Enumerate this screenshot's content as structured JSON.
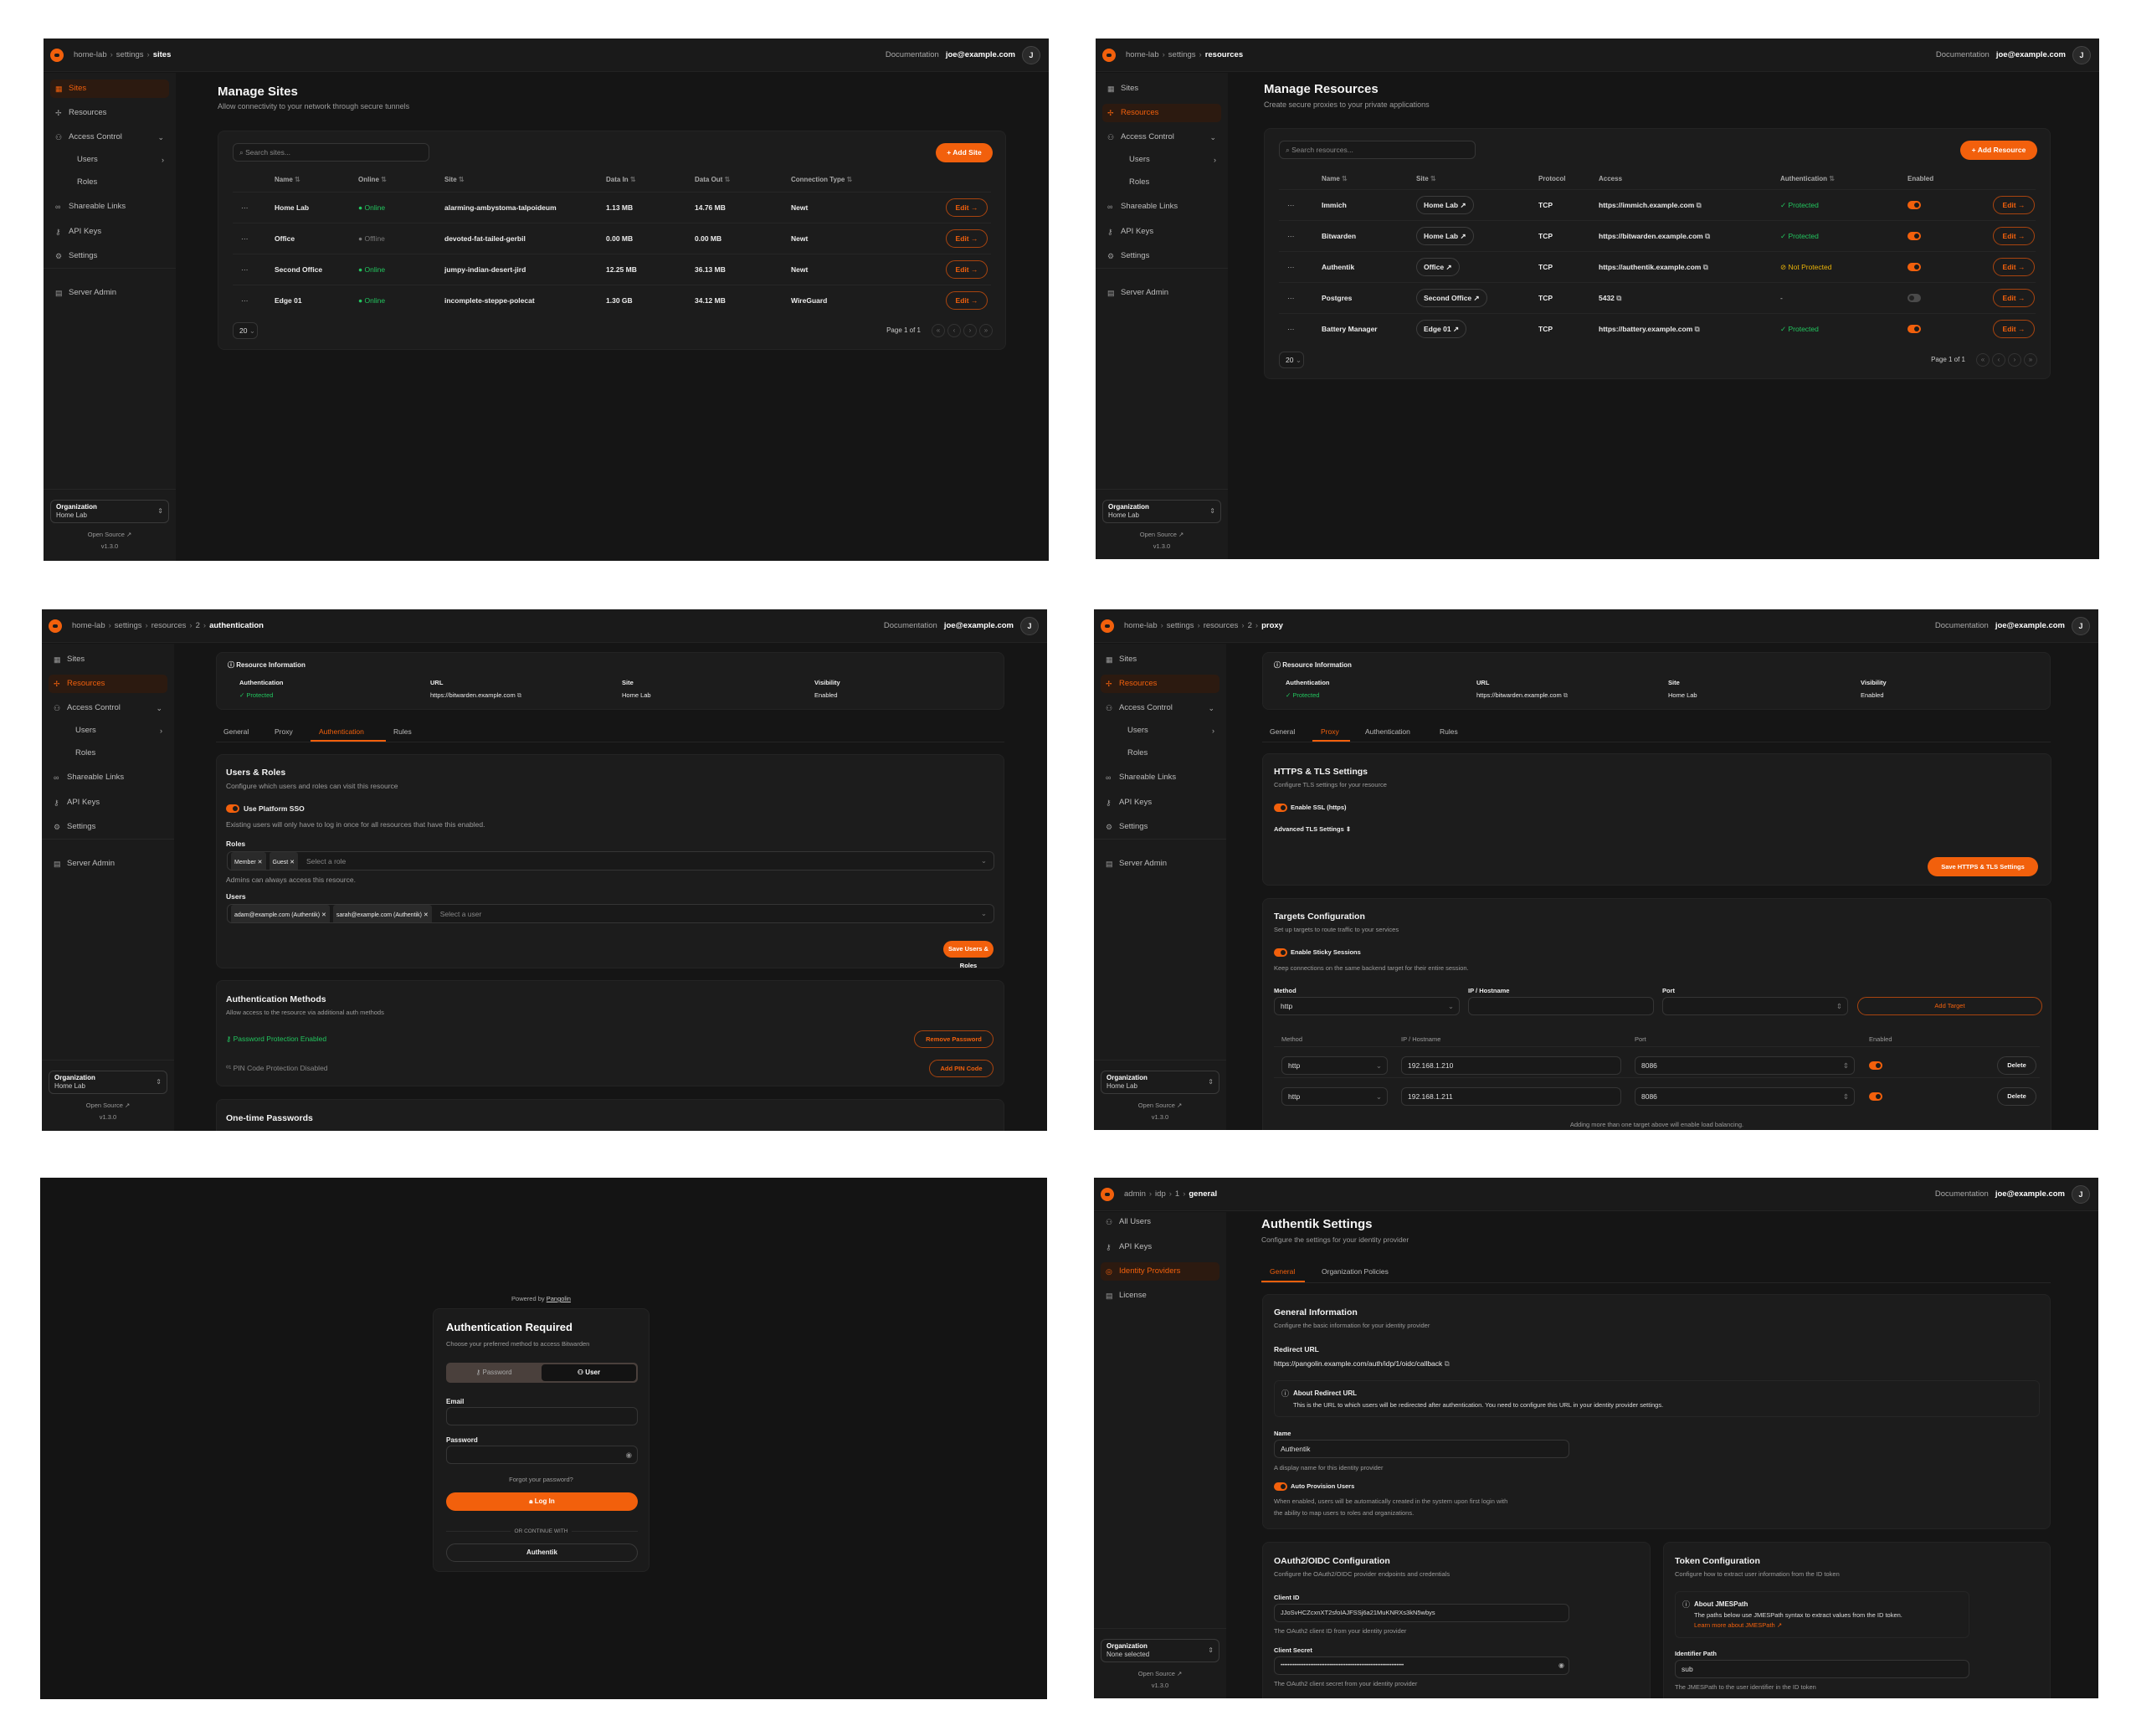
{
  "colors": {
    "accent": "#f2600c",
    "success": "#22c55e",
    "warning": "#eab308",
    "panel_background": "#151515",
    "page_background": "#ffffff"
  },
  "common": {
    "documentation": "Documentation",
    "user_email": "joe@example.com",
    "avatar_initial": "J",
    "org_label": "Organization",
    "open_source": "Open Source",
    "version": "v1.3.0",
    "edit_label": "Edit",
    "page_size": "20",
    "page_info": "Page 1 of 1"
  },
  "org_nav": [
    {
      "label": "Sites",
      "icon": "sites-icon"
    },
    {
      "label": "Resources",
      "icon": "resources-icon"
    },
    {
      "label": "Access Control",
      "icon": "users-icon",
      "chevron": "chevron-down-icon"
    },
    {
      "label": "Users",
      "sub": true,
      "chevron": "chevron-right-icon"
    },
    {
      "label": "Roles",
      "sub": true
    },
    {
      "label": "Shareable Links",
      "icon": "link-icon"
    },
    {
      "label": "API Keys",
      "icon": "key-icon"
    },
    {
      "label": "Settings",
      "icon": "gear-icon"
    },
    {
      "label": "Server Admin",
      "icon": "server-icon"
    }
  ],
  "admin_nav": [
    {
      "label": "All Users",
      "icon": "users-icon"
    },
    {
      "label": "API Keys",
      "icon": "key-icon"
    },
    {
      "label": "Identity Providers",
      "icon": "fingerprint-icon"
    },
    {
      "label": "License",
      "icon": "license-icon"
    }
  ],
  "sites": {
    "breadcrumb": [
      "home-lab",
      "settings",
      "sites"
    ],
    "active_nav": "Sites",
    "org_value": "Home Lab",
    "title": "Manage Sites",
    "subtitle": "Allow connectivity to your network through secure tunnels",
    "search_placeholder": "Search sites...",
    "add_button": "Add Site",
    "columns": [
      "Name",
      "Online",
      "Site",
      "Data In",
      "Data Out",
      "Connection Type"
    ],
    "rows": [
      {
        "name": "Home Lab",
        "status": "Online",
        "site": "alarming-ambystoma-talpoideum",
        "data_in": "1.13 MB",
        "data_out": "14.76 MB",
        "type": "Newt"
      },
      {
        "name": "Office",
        "status": "Offline",
        "site": "devoted-fat-tailed-gerbil",
        "data_in": "0.00 MB",
        "data_out": "0.00 MB",
        "type": "Newt"
      },
      {
        "name": "Second Office",
        "status": "Online",
        "site": "jumpy-indian-desert-jird",
        "data_in": "12.25 MB",
        "data_out": "36.13 MB",
        "type": "Newt"
      },
      {
        "name": "Edge 01",
        "status": "Online",
        "site": "incomplete-steppe-polecat",
        "data_in": "1.30 GB",
        "data_out": "34.12 MB",
        "type": "WireGuard"
      }
    ]
  },
  "resources": {
    "breadcrumb": [
      "home-lab",
      "settings",
      "resources"
    ],
    "active_nav": "Resources",
    "org_value": "Home Lab",
    "title": "Manage Resources",
    "subtitle": "Create secure proxies to your private applications",
    "search_placeholder": "Search resources...",
    "add_button": "Add Resource",
    "columns": [
      "Name",
      "Site",
      "Protocol",
      "Access",
      "Authentication",
      "Enabled"
    ],
    "rows": [
      {
        "name": "Immich",
        "site": "Home Lab",
        "protocol": "TCP",
        "access": "https://immich.example.com",
        "auth": "Protected",
        "auth_state": "protected",
        "enabled": true
      },
      {
        "name": "Bitwarden",
        "site": "Home Lab",
        "protocol": "TCP",
        "access": "https://bitwarden.example.com",
        "auth": "Protected",
        "auth_state": "protected",
        "enabled": true
      },
      {
        "name": "Authentik",
        "site": "Office",
        "protocol": "TCP",
        "access": "https://authentik.example.com",
        "auth": "Not Protected",
        "auth_state": "unprotected",
        "enabled": true
      },
      {
        "name": "Postgres",
        "site": "Second Office",
        "protocol": "TCP",
        "access": "5432",
        "auth": "-",
        "auth_state": "none",
        "enabled": false
      },
      {
        "name": "Battery Manager",
        "site": "Edge 01",
        "protocol": "TCP",
        "access": "https://battery.example.com",
        "auth": "Protected",
        "auth_state": "protected",
        "enabled": true
      }
    ]
  },
  "resource_info": {
    "title": "Resource Information",
    "fields": [
      {
        "label": "Authentication",
        "value": "Protected"
      },
      {
        "label": "URL",
        "value": "https://bitwarden.example.com"
      },
      {
        "label": "Site",
        "value": "Home Lab"
      },
      {
        "label": "Visibility",
        "value": "Enabled"
      }
    ],
    "tabs": [
      "General",
      "Proxy",
      "Authentication",
      "Rules"
    ]
  },
  "auth": {
    "breadcrumb": [
      "home-lab",
      "settings",
      "resources",
      "2",
      "authentication"
    ],
    "active_nav": "Resources",
    "org_value": "Home Lab",
    "active_tab": "Authentication",
    "users_roles": {
      "title": "Users & Roles",
      "desc": "Configure which users and roles can visit this resource",
      "sso_label": "Use Platform SSO",
      "sso_enabled": true,
      "sso_help": "Existing users will only have to log in once for all resources that have this enabled.",
      "roles_label": "Roles",
      "roles": [
        "Member",
        "Guest"
      ],
      "roles_placeholder": "Select a role",
      "roles_help": "Admins can always access this resource.",
      "users_label": "Users",
      "users": [
        "adam@example.com (Authentik)",
        "sarah@example.com (Authentik)"
      ],
      "users_placeholder": "Select a user",
      "save_button": "Save Users & Roles"
    },
    "auth_methods": {
      "title": "Authentication Methods",
      "desc": "Allow access to the resource via additional auth methods",
      "password_status": "Password Protection Enabled",
      "remove_password": "Remove Password",
      "pin_status": "PIN Code Protection Disabled",
      "add_pin": "Add PIN Code"
    },
    "otp_title": "One-time Passwords"
  },
  "proxy": {
    "breadcrumb": [
      "home-lab",
      "settings",
      "resources",
      "2",
      "proxy"
    ],
    "active_nav": "Resources",
    "org_value": "Home Lab",
    "active_tab": "Proxy",
    "https": {
      "title": "HTTPS & TLS Settings",
      "desc": "Configure TLS settings for your resource",
      "ssl_label": "Enable SSL (https)",
      "ssl_enabled": true,
      "advanced": "Advanced TLS Settings",
      "save_button": "Save HTTPS & TLS Settings"
    },
    "targets": {
      "title": "Targets Configuration",
      "desc": "Set up targets to route traffic to your services",
      "sticky_label": "Enable Sticky Sessions",
      "sticky_enabled": true,
      "sticky_help": "Keep connections on the same backend target for their entire session.",
      "form_labels": [
        "Method",
        "IP / Hostname",
        "Port"
      ],
      "form_method": "http",
      "add_button": "Add Target",
      "columns": [
        "Method",
        "IP / Hostname",
        "Port",
        "Enabled"
      ],
      "rows": [
        {
          "method": "http",
          "ip": "192.168.1.210",
          "port": "8086",
          "enabled": true
        },
        {
          "method": "http",
          "ip": "192.168.1.211",
          "port": "8086",
          "enabled": true
        }
      ],
      "delete_label": "Delete",
      "footer": "Adding more than one target above will enable load balancing."
    }
  },
  "login": {
    "powered_by": "Powered by",
    "brand": "Pangolin",
    "title": "Authentication Required",
    "subtitle": "Choose your preferred method to access Bitwarden",
    "tabs": [
      "Password",
      "User"
    ],
    "active_tab": "User",
    "email_label": "Email",
    "password_label": "Password",
    "forgot": "Forgot your password?",
    "login_button": "Log In",
    "divider": "OR CONTINUE WITH",
    "sso_button": "Authentik"
  },
  "idp": {
    "breadcrumb": [
      "admin",
      "idp",
      "1",
      "general"
    ],
    "active_nav": "Identity Providers",
    "org_value": "None selected",
    "title": "Authentik Settings",
    "subtitle": "Configure the settings for your identity provider",
    "tabs": [
      "General",
      "Organization Policies"
    ],
    "active_tab": "General",
    "general": {
      "title": "General Information",
      "desc": "Configure the basic information for your identity provider",
      "redirect_label": "Redirect URL",
      "redirect_url": "https://pangolin.example.com/auth/idp/1/oidc/callback",
      "about_title": "About Redirect URL",
      "about_text": "This is the URL to which users will be redirected after authentication. You need to configure this URL in your identity provider settings.",
      "name_label": "Name",
      "name_value": "Authentik",
      "name_help": "A display name for this identity provider",
      "auto_label": "Auto Provision Users",
      "auto_enabled": true,
      "auto_help_1": "When enabled, users will be automatically created in the system upon first login with",
      "auto_help_2": "the ability to map users to roles and organizations."
    },
    "oauth": {
      "title": "OAuth2/OIDC Configuration",
      "desc": "Configure the OAuth2/OIDC provider endpoints and credentials",
      "client_id_label": "Client ID",
      "client_id": "JJoSvHCZcxnXT2sfoIAJFSSj6a21MuKNRXs3kN5wbys",
      "client_id_help": "The OAuth2 client ID from your identity provider",
      "secret_label": "Client Secret",
      "secret_mask": "••••••••••••••••••••••••••••••••••••••••••••••••••••••••••••••••••••••",
      "secret_help": "The OAuth2 client secret from your identity provider"
    },
    "token": {
      "title": "Token Configuration",
      "desc": "Configure how to extract user information from the ID token",
      "about_title": "About JMESPath",
      "about_text": "The paths below use JMESPath syntax to extract values from the ID token.",
      "about_link": "Learn more about JMESPath",
      "identifier_label": "Identifier Path",
      "identifier_value": "sub",
      "identifier_help": "The JMESPath to the user identifier in the ID token"
    }
  }
}
